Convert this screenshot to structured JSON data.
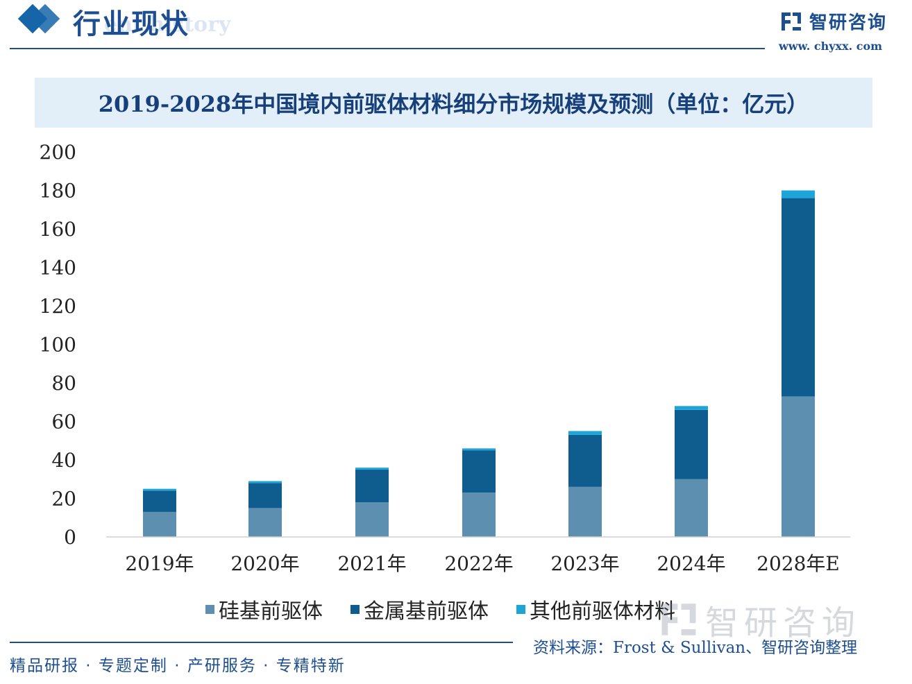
{
  "header": {
    "section_title": "行业现状",
    "ghost_text": "ent history",
    "brand_name": "智研咨询",
    "brand_url": "www. chyxx. com"
  },
  "chart_data": {
    "type": "bar",
    "stacked": true,
    "title": "2019-2028年中国境内前驱体材料细分市场规模及预测（单位：亿元）",
    "categories": [
      "2019年",
      "2020年",
      "2021年",
      "2022年",
      "2023年",
      "2024年",
      "2028年E"
    ],
    "series": [
      {
        "name": "硅基前驱体",
        "color": "#5d8fb0",
        "values": [
          13,
          15,
          18,
          23,
          26,
          30,
          73
        ]
      },
      {
        "name": "金属基前驱体",
        "color": "#0e5d8e",
        "values": [
          11,
          13,
          17,
          22,
          27,
          36,
          103
        ]
      },
      {
        "name": "其他前驱体材料",
        "color": "#1ea5d8",
        "values": [
          1,
          1,
          1,
          1,
          2,
          2,
          4
        ]
      }
    ],
    "ylim": [
      0,
      200
    ],
    "yticks": [
      0,
      20,
      40,
      60,
      80,
      100,
      120,
      140,
      160,
      180,
      200
    ],
    "grid": false,
    "legend": "bottom"
  },
  "watermark": {
    "text": "智研咨询"
  },
  "footer": {
    "left": "精品研报 · 专题定制 · 产研服务 · 专精特新",
    "source": "资料来源：Frost & Sullivan、智研咨询整理"
  }
}
